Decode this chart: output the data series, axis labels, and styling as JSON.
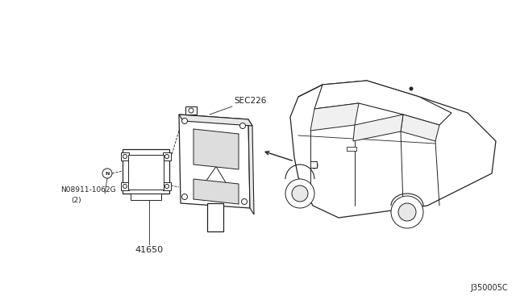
{
  "bg_color": "#ffffff",
  "line_color": "#222222",
  "text_color": "#222222",
  "diagram_id": "J350005C",
  "sec_label": "SEC226",
  "part_label_1": "N08911-1062G",
  "part_label_1b": "(2)",
  "part_label_2": "41650"
}
